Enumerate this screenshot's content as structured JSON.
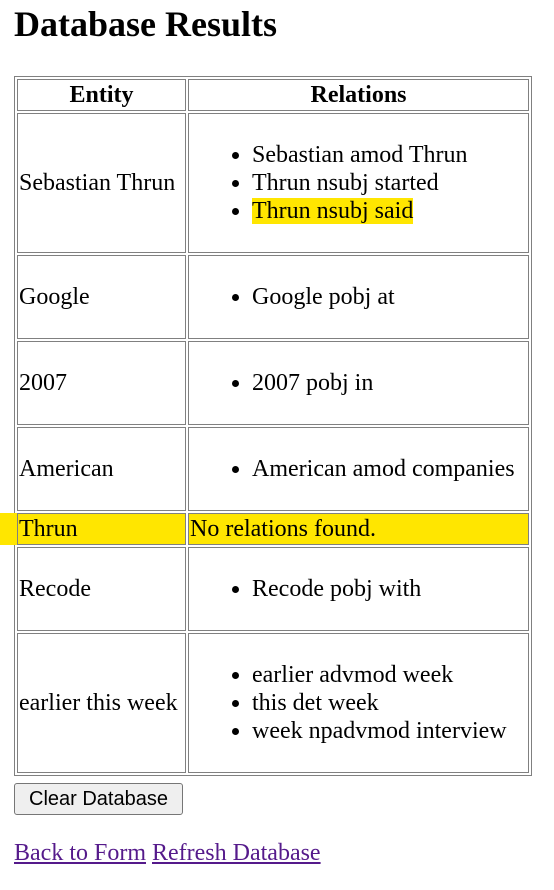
{
  "page": {
    "title": "Database Results"
  },
  "table": {
    "headers": {
      "entity": "Entity",
      "relations": "Relations"
    },
    "rows": [
      {
        "entity": "Sebastian Thrun",
        "relations": [
          "Sebastian amod Thrun",
          "Thrun nsubj started",
          "Thrun nsubj said"
        ],
        "highlighted_relation": 2
      },
      {
        "entity": "Google",
        "relations": [
          "Google pobj at"
        ]
      },
      {
        "entity": "2007",
        "relations": [
          "2007 pobj in"
        ]
      },
      {
        "entity": "American",
        "relations": [
          "American amod companies"
        ]
      },
      {
        "entity": "Thrun",
        "relations": [],
        "no_relations_text": "No relations found.",
        "highlighted": true
      },
      {
        "entity": "Recode",
        "relations": [
          "Recode pobj with"
        ]
      },
      {
        "entity": "earlier this week",
        "relations": [
          "earlier advmod week",
          "this det week",
          "week npadvmod interview"
        ]
      }
    ]
  },
  "actions": {
    "clear_button": "Clear Database"
  },
  "links": {
    "back": "Back to Form",
    "refresh": "Refresh Database"
  },
  "colors": {
    "highlight": "#ffe600",
    "visited_link": "#551a8b",
    "table_border": "#808080"
  }
}
